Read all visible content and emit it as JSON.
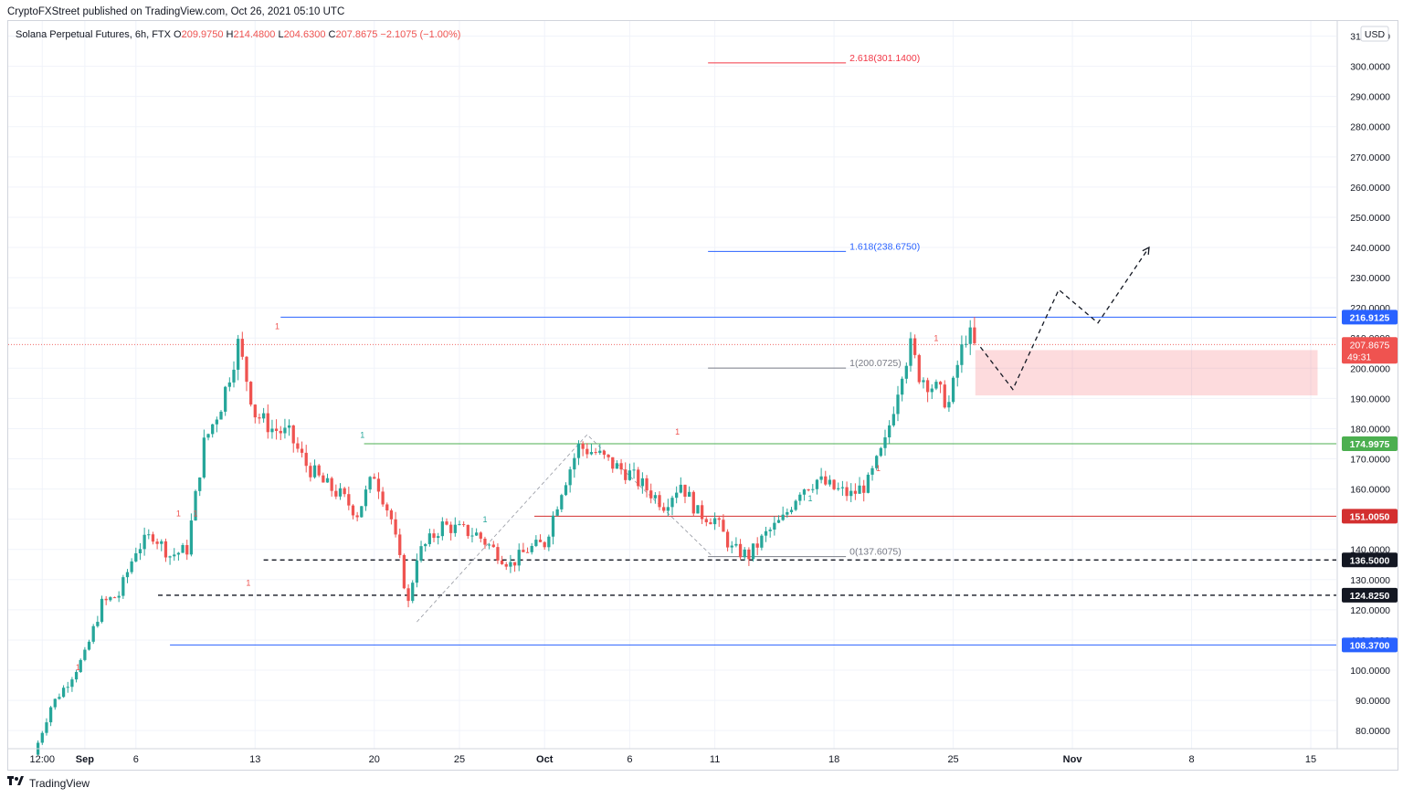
{
  "header": {
    "published": "CryptoFXStreet published on TradingView.com, Oct 26, 2021 05:10 UTC"
  },
  "footer": {
    "brand": "TradingView",
    "logo_icon": "tradingview-logo-icon"
  },
  "chart_data": {
    "type": "candlestick",
    "legend": {
      "symbol": "Solana Perpetual Futures, 6h, FTX",
      "o_label": "O",
      "o_value": "209.9750",
      "h_label": "H",
      "h_value": "214.4800",
      "l_label": "L",
      "l_value": "204.6300",
      "c_label": "C",
      "c_value": "207.8675",
      "change": "−2.1075 (−1.00%)"
    },
    "currency": "USD",
    "ylim": [
      74,
      315
    ],
    "y_ticks": [
      80,
      90,
      100,
      110,
      120,
      130,
      140,
      150,
      160,
      170,
      180,
      190,
      200,
      210,
      220,
      230,
      240,
      250,
      260,
      270,
      280,
      290,
      300,
      310
    ],
    "x_ticks": [
      {
        "label": "12:00",
        "day": 0.5,
        "bold": false
      },
      {
        "label": "Sep",
        "day": 3,
        "bold": true
      },
      {
        "label": "6",
        "day": 6,
        "bold": false
      },
      {
        "label": "13",
        "day": 13,
        "bold": false
      },
      {
        "label": "20",
        "day": 20,
        "bold": false
      },
      {
        "label": "25",
        "day": 25,
        "bold": false
      },
      {
        "label": "Oct",
        "day": 30,
        "bold": true
      },
      {
        "label": "6",
        "day": 35,
        "bold": false
      },
      {
        "label": "11",
        "day": 40,
        "bold": false
      },
      {
        "label": "18",
        "day": 47,
        "bold": false
      },
      {
        "label": "25",
        "day": 54,
        "bold": false
      },
      {
        "label": "Nov",
        "day": 61,
        "bold": true
      },
      {
        "label": "8",
        "day": 68,
        "bold": false
      },
      {
        "label": "15",
        "day": 75,
        "bold": false
      }
    ],
    "x_range_days": [
      -1.5,
      76.5
    ],
    "price_path": [
      [
        0,
        72
      ],
      [
        1,
        88
      ],
      [
        2,
        96
      ],
      [
        3,
        105
      ],
      [
        4,
        122
      ],
      [
        5,
        125
      ],
      [
        6,
        140
      ],
      [
        7,
        145
      ],
      [
        8,
        138
      ],
      [
        9,
        140
      ],
      [
        10,
        175
      ],
      [
        11,
        188
      ],
      [
        12,
        208
      ],
      [
        13,
        185
      ],
      [
        14,
        180
      ],
      [
        15,
        178
      ],
      [
        16,
        168
      ],
      [
        17,
        162
      ],
      [
        18,
        158
      ],
      [
        19,
        152
      ],
      [
        20,
        165
      ],
      [
        21,
        150
      ],
      [
        22,
        122
      ],
      [
        22.5,
        138
      ],
      [
        24,
        148
      ],
      [
        26,
        145
      ],
      [
        28,
        135
      ],
      [
        29,
        140
      ],
      [
        30,
        142
      ],
      [
        31,
        160
      ],
      [
        32,
        174
      ],
      [
        33,
        172
      ],
      [
        34,
        168
      ],
      [
        35,
        165
      ],
      [
        36,
        160
      ],
      [
        37,
        155
      ],
      [
        38,
        162
      ],
      [
        39,
        152
      ],
      [
        40,
        150
      ],
      [
        41,
        140
      ],
      [
        42,
        138
      ],
      [
        43,
        145
      ],
      [
        44,
        150
      ],
      [
        45,
        160
      ],
      [
        46,
        163
      ],
      [
        47,
        160
      ],
      [
        48,
        158
      ],
      [
        49,
        162
      ],
      [
        50,
        175
      ],
      [
        51,
        200
      ],
      [
        51.5,
        207
      ],
      [
        52,
        198
      ],
      [
        53,
        193
      ],
      [
        53.8,
        188
      ],
      [
        54.2,
        200
      ],
      [
        54.8,
        212
      ],
      [
        55.3,
        207.8675
      ]
    ],
    "horizontal_levels": [
      {
        "value": 216.9125,
        "label": "216.9125",
        "color": "#2962ff",
        "style": "solid",
        "from_day": 14.5
      },
      {
        "value": 174.9975,
        "label": "174.9975",
        "color": "#4caf50",
        "style": "solid",
        "from_day": 19.4
      },
      {
        "value": 151.005,
        "label": "151.0050",
        "color": "#d32f2f",
        "style": "solid",
        "from_day": 29.4
      },
      {
        "value": 136.5,
        "label": "136.5000",
        "color": "#131722",
        "style": "dashed",
        "from_day": 13.5
      },
      {
        "value": 124.825,
        "label": "124.8250",
        "color": "#131722",
        "style": "dashed",
        "from_day": 7.3
      },
      {
        "value": 108.37,
        "label": "108.3700",
        "color": "#2962ff",
        "style": "solid",
        "from_day": 8.0
      }
    ],
    "current_price": {
      "value": 207.8675,
      "label": "207.8675",
      "countdown": "49:31",
      "color": "#ef5350"
    },
    "fib_levels": [
      {
        "label": "2.618(301.1400)",
        "value": 301.14,
        "color": "#f23645"
      },
      {
        "label": "1.618(238.6750)",
        "value": 238.675,
        "color": "#2962ff"
      },
      {
        "label": "1(200.0725)",
        "value": 200.0725,
        "color": "#787b86"
      },
      {
        "label": "0(137.6075)",
        "value": 137.6075,
        "color": "#787b86"
      }
    ],
    "fib_range_days": [
      39.6,
      47.7
    ],
    "demand_zone": {
      "low": 191,
      "high": 206,
      "from_day": 55.3,
      "to_day": 75.4
    },
    "projection_path": [
      [
        55.6,
        207
      ],
      [
        57.5,
        193
      ],
      [
        60.2,
        226
      ],
      [
        62.5,
        215
      ],
      [
        65.5,
        240
      ]
    ],
    "fractal_markers": [
      {
        "label": "1",
        "day": 2.6,
        "value": 100,
        "color": "#ef5350"
      },
      {
        "label": "1",
        "day": 8.5,
        "value": 151,
        "color": "#ef5350"
      },
      {
        "label": "1",
        "day": 9.5,
        "value": 151,
        "color": "#ef5350"
      },
      {
        "label": "1",
        "day": 12.6,
        "value": 128,
        "color": "#ef5350"
      },
      {
        "label": "1",
        "day": 14.3,
        "value": 213,
        "color": "#ef5350"
      },
      {
        "label": "1",
        "day": 19.3,
        "value": 177,
        "color": "#26a69a"
      },
      {
        "label": "1",
        "day": 26.5,
        "value": 149,
        "color": "#26a69a"
      },
      {
        "label": "1",
        "day": 37.8,
        "value": 178,
        "color": "#ef5350"
      },
      {
        "label": "1",
        "day": 45.6,
        "value": 156,
        "color": "#26a69a"
      },
      {
        "label": "1",
        "day": 49.6,
        "value": 166,
        "color": "#ef5350"
      },
      {
        "label": "1",
        "day": 53.0,
        "value": 209,
        "color": "#ef5350"
      }
    ],
    "grid": true
  }
}
